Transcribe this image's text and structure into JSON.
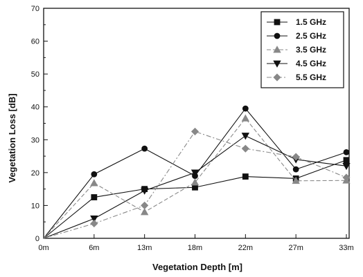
{
  "chart_data": {
    "type": "line",
    "title": "",
    "xlabel": "Vegetation Depth [m]",
    "ylabel": "Vegetation Loss [dB]",
    "categories": [
      "0m",
      "6m",
      "13m",
      "18m",
      "22m",
      "27m",
      "33m"
    ],
    "ylim": [
      0,
      70
    ],
    "yticks": [
      0,
      10,
      20,
      30,
      40,
      50,
      60,
      70
    ],
    "grid": false,
    "legend_position": "top-right",
    "series": [
      {
        "name": "1.5 GHz",
        "marker": "square",
        "line": "solid",
        "color": "#111111",
        "values": [
          0,
          12.5,
          15,
          15.5,
          18.8,
          18.2,
          23.8
        ]
      },
      {
        "name": "2.5 GHz",
        "marker": "circle",
        "line": "solid",
        "color": "#111111",
        "values": [
          0,
          19.5,
          27.3,
          19,
          39.5,
          21,
          26.2
        ]
      },
      {
        "name": "3.5 GHz",
        "marker": "triangle-up",
        "line": "dashed",
        "color": "#888888",
        "values": [
          0,
          16.8,
          8,
          17,
          36.5,
          17.5,
          17.6
        ]
      },
      {
        "name": "4.5 GHz",
        "marker": "triangle-down",
        "line": "solid",
        "color": "#111111",
        "values": [
          0,
          6,
          14.5,
          20,
          31.2,
          24,
          22
        ]
      },
      {
        "name": "5.5 GHz",
        "marker": "diamond",
        "line": "dashdot",
        "color": "#888888",
        "values": [
          0,
          4.5,
          10,
          32.5,
          27.3,
          24.8,
          18.5
        ]
      }
    ]
  }
}
